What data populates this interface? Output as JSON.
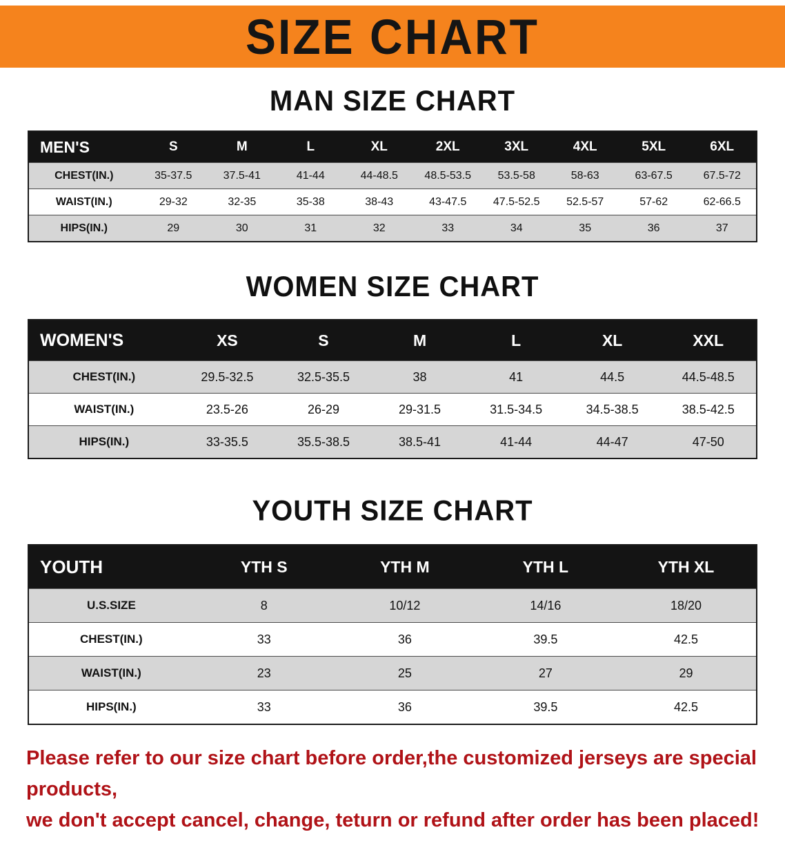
{
  "banner": {
    "title": "SIZE CHART",
    "bg_color": "#f5831d",
    "text_color": "#151515"
  },
  "sections": [
    {
      "id": "men",
      "heading": "MAN SIZE CHART",
      "table": {
        "title": "MEN'S",
        "header": [
          "MEN'S",
          "S",
          "M",
          "L",
          "XL",
          "2XL",
          "3XL",
          "4XL",
          "5XL",
          "6XL"
        ],
        "rows": [
          {
            "label": "CHEST(IN.)",
            "values": [
              "35-37.5",
              "37.5-41",
              "41-44",
              "44-48.5",
              "48.5-53.5",
              "53.5-58",
              "58-63",
              "63-67.5",
              "67.5-72"
            ]
          },
          {
            "label": "WAIST(IN.)",
            "values": [
              "29-32",
              "32-35",
              "35-38",
              "38-43",
              "43-47.5",
              "47.5-52.5",
              "52.5-57",
              "57-62",
              "62-66.5"
            ]
          },
          {
            "label": "HIPS(IN.)",
            "values": [
              "29",
              "30",
              "31",
              "32",
              "33",
              "34",
              "35",
              "36",
              "37"
            ]
          }
        ]
      }
    },
    {
      "id": "women",
      "heading": "WOMEN SIZE CHART",
      "table": {
        "title": "WOMEN'S",
        "header": [
          "WOMEN'S",
          "XS",
          "S",
          "M",
          "L",
          "XL",
          "XXL"
        ],
        "rows": [
          {
            "label": "CHEST(IN.)",
            "values": [
              "29.5-32.5",
              "32.5-35.5",
              "38",
              "41",
              "44.5",
              "44.5-48.5"
            ]
          },
          {
            "label": "WAIST(IN.)",
            "values": [
              "23.5-26",
              "26-29",
              "29-31.5",
              "31.5-34.5",
              "34.5-38.5",
              "38.5-42.5"
            ]
          },
          {
            "label": "HIPS(IN.)",
            "values": [
              "33-35.5",
              "35.5-38.5",
              "38.5-41",
              "41-44",
              "44-47",
              "47-50"
            ]
          }
        ]
      }
    },
    {
      "id": "youth",
      "heading": "YOUTH SIZE CHART",
      "table": {
        "title": "YOUTH",
        "header": [
          "YOUTH",
          "YTH S",
          "YTH M",
          "YTH L",
          "YTH XL"
        ],
        "rows": [
          {
            "label": "U.S.SIZE",
            "values": [
              "8",
              "10/12",
              "14/16",
              "18/20"
            ]
          },
          {
            "label": "CHEST(IN.)",
            "values": [
              "33",
              "36",
              "39.5",
              "42.5"
            ]
          },
          {
            "label": "WAIST(IN.)",
            "values": [
              "23",
              "25",
              "27",
              "29"
            ]
          },
          {
            "label": "HIPS(IN.)",
            "values": [
              "33",
              "36",
              "39.5",
              "42.5"
            ]
          }
        ]
      }
    }
  ],
  "footer": {
    "line1": "Please refer to our size chart before order,the customized jerseys are special products,",
    "line2": "we don't accept cancel, change, teturn or refund after order has been placed!",
    "text_color": "#b01217"
  },
  "colors": {
    "header_row_bg": "#141414",
    "header_row_text": "#ffffff",
    "stripe_bg": "#d6d6d6"
  }
}
